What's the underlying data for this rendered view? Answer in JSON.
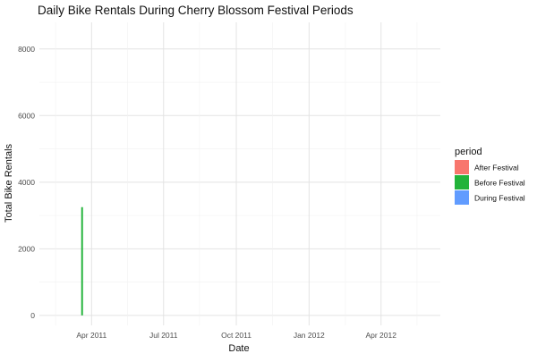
{
  "chart_data": {
    "type": "bar",
    "title": "Daily Bike Rentals During Cherry Blossom Festival Periods",
    "xlabel": "Date",
    "ylabel": "Total Bike Rentals",
    "x_axis": {
      "type": "date",
      "range": [
        "2011-01-25",
        "2012-06-15"
      ],
      "ticks": [
        {
          "date": "2011-04-01",
          "label": "Apr 2011"
        },
        {
          "date": "2011-07-01",
          "label": "Jul 2011"
        },
        {
          "date": "2011-10-01",
          "label": "Oct 2011"
        },
        {
          "date": "2012-01-01",
          "label": "Jan 2012"
        },
        {
          "date": "2012-04-01",
          "label": "Apr 2012"
        }
      ]
    },
    "y_axis": {
      "range": [
        -300,
        8800
      ],
      "ticks": [
        0,
        2000,
        4000,
        6000,
        8000
      ]
    },
    "grid": true,
    "legend": {
      "title": "period",
      "position": "right"
    },
    "series": [
      {
        "name": "After Festival",
        "color": "#F8766D",
        "points": []
      },
      {
        "name": "Before Festival",
        "color": "#22B33A",
        "points": [
          {
            "x": "2011-03-20",
            "y": 3250
          }
        ]
      },
      {
        "name": "During Festival",
        "color": "#619CFF",
        "points": []
      }
    ]
  }
}
